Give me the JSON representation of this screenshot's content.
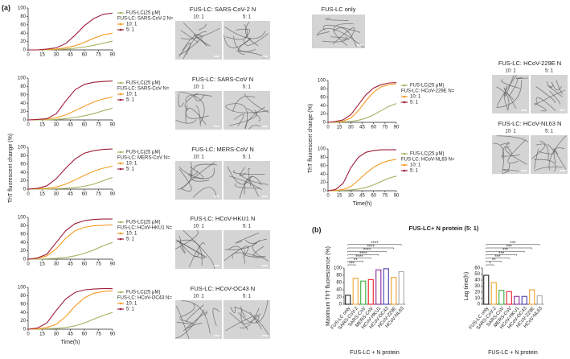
{
  "panels": [
    "(a)",
    "(b)"
  ],
  "micrographs": [
    {
      "title": "FUS-LC: SARS-CoV-2 N",
      "labels": [
        "10: 1",
        "5: 1"
      ]
    },
    {
      "title": "FUS-LC: SARS-CoV N",
      "labels": [
        "10: 1",
        "5: 1"
      ]
    },
    {
      "title": "FUS-LC: MERS-CoV N",
      "labels": [
        "10: 1",
        "5: 1"
      ]
    },
    {
      "title": "FUS-LC: HCoV-HKU1 N",
      "labels": [
        "10: 1",
        "5: 1"
      ]
    },
    {
      "title": "FUS-LC: HCoV-OC43 N",
      "labels": [
        "10: 1",
        "5: 1"
      ]
    },
    {
      "title": "FUS-LC only",
      "labels": []
    },
    {
      "title": "FUS-LC: HCoV-229E N",
      "labels": [
        "10: 1",
        "5: 1"
      ]
    },
    {
      "title": "FUS-LC: HCoV-NL63 N",
      "labels": [
        "10: 1",
        "5: 1"
      ]
    }
  ],
  "chart_data": [
    {
      "type": "line",
      "legend_title": "FUS-LC: SARS-CoV-2 N=",
      "x": [
        0,
        10,
        20,
        30,
        40,
        50,
        60,
        70,
        80,
        90
      ],
      "xlim": [
        0,
        90
      ],
      "xticks": [
        0,
        15,
        30,
        45,
        60,
        75,
        90
      ],
      "ylim": [
        0,
        100
      ],
      "yticks": [
        0,
        20,
        40,
        60,
        80,
        100
      ],
      "series": [
        {
          "name": "FUS-LC(25 μM)",
          "color": "#a8b060",
          "values": [
            0,
            0,
            0,
            1,
            2,
            4,
            7,
            11,
            16,
            21
          ]
        },
        {
          "name": "10: 1",
          "color": "#f59a23",
          "values": [
            0,
            0,
            1,
            2,
            5,
            10,
            18,
            28,
            36,
            40
          ]
        },
        {
          "name": "5: 1",
          "color": "#9e1f3a",
          "values": [
            0,
            0,
            2,
            5,
            15,
            35,
            58,
            75,
            85,
            88
          ]
        }
      ]
    },
    {
      "type": "line",
      "legend_title": "FUS-LC: SARS-CoV N=",
      "x": [
        0,
        10,
        20,
        30,
        40,
        50,
        60,
        70,
        80,
        90
      ],
      "xlim": [
        0,
        90
      ],
      "xticks": [
        0,
        15,
        30,
        45,
        60,
        75,
        90
      ],
      "ylim": [
        0,
        100
      ],
      "yticks": [
        0,
        20,
        40,
        60,
        80,
        100
      ],
      "series": [
        {
          "name": "FUS-LC(25 μM)",
          "color": "#a8b060",
          "values": [
            0,
            0,
            0,
            1,
            3,
            6,
            10,
            15,
            22,
            28
          ]
        },
        {
          "name": "10: 1",
          "color": "#f59a23",
          "values": [
            0,
            1,
            2,
            5,
            12,
            22,
            33,
            43,
            50,
            55
          ]
        },
        {
          "name": "5: 1",
          "color": "#9e1f3a",
          "values": [
            0,
            1,
            3,
            15,
            45,
            72,
            85,
            90,
            92,
            93
          ]
        }
      ]
    },
    {
      "type": "line",
      "legend_title": "FUS-LC: MERS-CoV N=",
      "ylabel": "ThT fluorescent change (%)",
      "x": [
        0,
        10,
        20,
        30,
        40,
        50,
        60,
        70,
        80,
        90
      ],
      "xlim": [
        0,
        90
      ],
      "xticks": [
        0,
        15,
        30,
        45,
        60,
        75,
        90
      ],
      "ylim": [
        0,
        100
      ],
      "yticks": [
        0,
        20,
        40,
        60,
        80,
        100
      ],
      "series": [
        {
          "name": "FUS-LC(25 μM)",
          "color": "#a8b060",
          "values": [
            0,
            0,
            0,
            1,
            2,
            4,
            7,
            12,
            20,
            28
          ]
        },
        {
          "name": "10: 1",
          "color": "#f59a23",
          "values": [
            0,
            1,
            2,
            5,
            12,
            22,
            33,
            43,
            50,
            55
          ]
        },
        {
          "name": "5: 1",
          "color": "#9e1f3a",
          "values": [
            0,
            2,
            8,
            25,
            50,
            72,
            86,
            92,
            95,
            96
          ]
        }
      ]
    },
    {
      "type": "line",
      "legend_title": "FUS-LC: HCoV-HKU1 N=",
      "x": [
        0,
        10,
        20,
        30,
        40,
        50,
        60,
        70,
        80,
        90
      ],
      "xlim": [
        0,
        90
      ],
      "xticks": [
        0,
        15,
        30,
        45,
        60,
        75,
        90
      ],
      "ylim": [
        0,
        100
      ],
      "yticks": [
        0,
        20,
        40,
        60,
        80,
        100
      ],
      "series": [
        {
          "name": "FUS-LC(25 μM)",
          "color": "#a8b060",
          "values": [
            0,
            0,
            1,
            2,
            4,
            8,
            14,
            22,
            32,
            40
          ]
        },
        {
          "name": "10: 1",
          "color": "#f59a23",
          "values": [
            0,
            2,
            8,
            25,
            50,
            68,
            76,
            80,
            81,
            82
          ]
        },
        {
          "name": "5: 1",
          "color": "#9e1f3a",
          "values": [
            0,
            3,
            12,
            40,
            68,
            85,
            92,
            95,
            96,
            96
          ]
        }
      ]
    },
    {
      "type": "line",
      "legend_title": "FUS-LC: HCoV-OC43 N=",
      "xlabel": "Time(h)",
      "x": [
        0,
        10,
        20,
        30,
        40,
        50,
        60,
        70,
        80,
        90
      ],
      "xlim": [
        0,
        90
      ],
      "xticks": [
        0,
        15,
        30,
        45,
        60,
        75,
        90
      ],
      "ylim": [
        0,
        100
      ],
      "yticks": [
        0,
        20,
        40,
        60,
        80,
        100
      ],
      "series": [
        {
          "name": "FUS-LC(25 μM)",
          "color": "#a8b060",
          "values": [
            0,
            0,
            1,
            2,
            4,
            8,
            15,
            24,
            33,
            40
          ]
        },
        {
          "name": "10: 1",
          "color": "#f59a23",
          "values": [
            0,
            1,
            4,
            12,
            30,
            55,
            75,
            86,
            90,
            92
          ]
        },
        {
          "name": "5: 1",
          "color": "#9e1f3a",
          "values": [
            0,
            3,
            15,
            45,
            72,
            88,
            94,
            96,
            97,
            97
          ]
        }
      ]
    },
    {
      "type": "line",
      "legend_title": "FUS-LC: HCoV-229E N=",
      "ylabel": "ThT fluorescent change (%)",
      "x": [
        0,
        10,
        20,
        30,
        40,
        50,
        60,
        70,
        80,
        90
      ],
      "xlim": [
        0,
        90
      ],
      "xticks": [
        0,
        15,
        30,
        45,
        60,
        75,
        90
      ],
      "ylim": [
        0,
        100
      ],
      "yticks": [
        0,
        20,
        40,
        60,
        80,
        100
      ],
      "series": [
        {
          "name": "FUS-LC(25 μM)",
          "color": "#a8b060",
          "values": [
            0,
            0,
            1,
            2,
            5,
            10,
            18,
            28,
            38,
            45
          ]
        },
        {
          "name": "10: 1",
          "color": "#f59a23",
          "values": [
            0,
            1,
            3,
            10,
            28,
            52,
            72,
            85,
            90,
            92
          ]
        },
        {
          "name": "5: 1",
          "color": "#9e1f3a",
          "values": [
            0,
            2,
            6,
            18,
            42,
            66,
            82,
            90,
            94,
            95
          ]
        }
      ]
    },
    {
      "type": "line",
      "legend_title": "FUS-LC: HCoV-NL63 N=",
      "xlabel": "Time(h)",
      "x": [
        0,
        10,
        20,
        30,
        40,
        50,
        60,
        70,
        80,
        90
      ],
      "xlim": [
        0,
        90
      ],
      "xticks": [
        0,
        15,
        30,
        45,
        60,
        75,
        90
      ],
      "ylim": [
        0,
        100
      ],
      "yticks": [
        0,
        20,
        40,
        60,
        80,
        100
      ],
      "series": [
        {
          "name": "FUS-LC(25 μM)",
          "color": "#a8b060",
          "values": [
            0,
            0,
            1,
            2,
            4,
            8,
            14,
            22,
            30,
            35
          ]
        },
        {
          "name": "10: 1",
          "color": "#f59a23",
          "values": [
            0,
            1,
            3,
            10,
            25,
            42,
            56,
            66,
            72,
            75
          ]
        },
        {
          "name": "5: 1",
          "color": "#9e1f3a",
          "values": [
            0,
            3,
            18,
            55,
            80,
            92,
            96,
            98,
            98,
            98
          ]
        }
      ]
    },
    {
      "type": "bar",
      "title": "FUS-LC+ N protein (5: 1)",
      "ylabel": "Maximum ThT fluorescence (%)",
      "xlabel": "FUS-LC + N protein",
      "categories": [
        "FUS-LC only",
        "SARS-CoV-2",
        "SARS-CoV",
        "MERS-CoV",
        "HCoV-HKU1",
        "HCoV-OC43",
        "HCoV-229E",
        "HCoV-NL63"
      ],
      "values": [
        25,
        72,
        64,
        68,
        95,
        98,
        74,
        90
      ],
      "colors": [
        "#222222",
        "#f0a830",
        "#3cae3c",
        "#e8202a",
        "#8a2a9a",
        "#4a3cb0",
        "#f0a030",
        "#aaaaaa"
      ],
      "ylim": [
        0,
        100
      ],
      "yticks": [
        0,
        20,
        40,
        60,
        80,
        100
      ],
      "significance": [
        "***",
        "**",
        "****",
        "****",
        "****",
        "****",
        "****"
      ]
    },
    {
      "type": "bar",
      "ylabel": "Lag time(h)",
      "xlabel": "FUS-LC + N protein",
      "categories": [
        "FUS-LC only",
        "SARS-CoV-2",
        "SARS-CoV",
        "MERS-CoV",
        "HCoV-HKU1",
        "HCoV-OC43",
        "HCoV-229E",
        "HCoV-NL63"
      ],
      "values": [
        48,
        36,
        23,
        21,
        13,
        13,
        24,
        14
      ],
      "colors": [
        "#222222",
        "#f0a830",
        "#3cae3c",
        "#e8202a",
        "#8a2a9a",
        "#4a3cb0",
        "#f0a030",
        "#aaaaaa"
      ],
      "ylim": [
        0,
        60
      ],
      "yticks": [
        0,
        10,
        20,
        30,
        40,
        50,
        60
      ],
      "significance": [
        "*",
        "**",
        "***",
        "***",
        "***",
        "***",
        "***"
      ]
    }
  ]
}
